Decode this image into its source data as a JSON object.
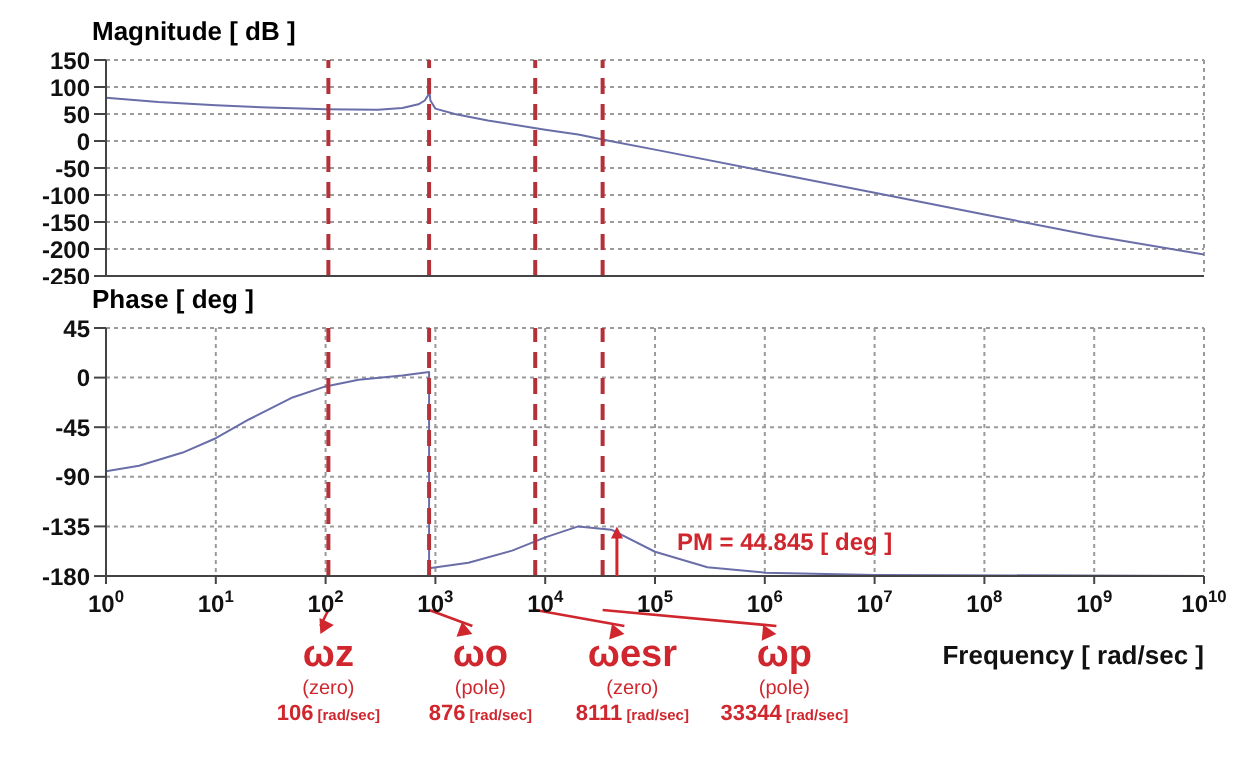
{
  "chart_data": [
    {
      "type": "line",
      "title": "Magnitude [ dB ]",
      "log": "x",
      "grid": true,
      "tick_labels": "y",
      "xlim": [
        1,
        10000000000
      ],
      "xticks": [
        {
          "value": 1,
          "label": null
        },
        {
          "value": 10,
          "label": null
        },
        {
          "value": 100,
          "label": null
        },
        {
          "value": 1000,
          "label": null
        },
        {
          "value": 10000,
          "label": null
        },
        {
          "value": 100000,
          "label": null
        },
        {
          "value": 1000000,
          "label": null
        },
        {
          "value": 10000000,
          "label": null
        },
        {
          "value": 100000000,
          "label": null
        },
        {
          "value": 1000000000,
          "label": null
        },
        {
          "value": 10000000000,
          "label": null
        }
      ],
      "ylim": [
        -250,
        150
      ],
      "yticks": [
        -250,
        -200,
        -150,
        -100,
        -50,
        0,
        50,
        100,
        150
      ],
      "series": [
        {
          "color": "#6a6ea8",
          "x": [
            1,
            3,
            10,
            30,
            100,
            300,
            500,
            700,
            800,
            860,
            876,
            900,
            1000,
            1500,
            3000,
            10000,
            20000,
            38900,
            100000,
            1000000,
            10000000,
            100000000,
            1000000000,
            10000000000
          ],
          "values": [
            80,
            72,
            66,
            62,
            59,
            58,
            61,
            68,
            75,
            85,
            100,
            75,
            60,
            50,
            38,
            21,
            12,
            0,
            -16,
            -56,
            -96,
            -136,
            -176,
            -210
          ]
        }
      ],
      "ref_lines": [
        {
          "axis": "x",
          "value": 106,
          "color": "#b5313a",
          "line_style": "dashed"
        },
        {
          "axis": "x",
          "value": 876,
          "color": "#b5313a",
          "line_style": "dashed"
        },
        {
          "axis": "x",
          "value": 8111,
          "color": "#b5313a",
          "line_style": "dashed"
        },
        {
          "axis": "x",
          "value": 33344,
          "color": "#b5313a",
          "line_style": "dashed"
        }
      ]
    },
    {
      "type": "line",
      "title": "Phase [ deg ]",
      "xlabel": "Frequency [ rad/sec ]",
      "log": "x",
      "grid": true,
      "xlim": [
        1,
        10000000000
      ],
      "xticks": [
        {
          "value": 1,
          "label": "10$^{0}$"
        },
        {
          "value": 10,
          "label": "10$^{1}$"
        },
        {
          "value": 100,
          "label": "10$^{2}$"
        },
        {
          "value": 1000,
          "label": "10$^{3}$"
        },
        {
          "value": 10000,
          "label": "10$^{4}$"
        },
        {
          "value": 100000,
          "label": "10$^{5}$"
        },
        {
          "value": 1000000,
          "label": "10$^{6}$"
        },
        {
          "value": 10000000,
          "label": "10$^{7}$"
        },
        {
          "value": 100000000,
          "label": "10$^{8}$"
        },
        {
          "value": 1000000000,
          "label": "10$^{9}$"
        },
        {
          "value": 10000000000,
          "label": "10$^{10}$"
        }
      ],
      "ylim": [
        -180,
        45
      ],
      "yticks": [
        -180,
        -135,
        -90,
        -45,
        0,
        45
      ],
      "series": [
        {
          "color": "#6a6ea8",
          "x": [
            1,
            2,
            5,
            10,
            20,
            50,
            100,
            200,
            500,
            876,
            876,
            2000,
            5000,
            10000,
            20000,
            40000,
            100000,
            300000,
            1000000,
            10000000,
            10000000000
          ],
          "values": [
            -85,
            -80,
            -68,
            -55,
            -38,
            -18,
            -8,
            -2,
            2,
            5,
            -173,
            -168,
            -157,
            -145,
            -135,
            -138,
            -158,
            -172,
            -177,
            -179,
            -180
          ]
        }
      ],
      "ref_lines": [
        {
          "axis": "x",
          "value": 106,
          "label": "ωz (zero) 106 [rad/sec]",
          "color": "#b5313a",
          "line_style": "dashed"
        },
        {
          "axis": "x",
          "value": 876,
          "label": "ωo (pole) 876 [rad/sec]",
          "color": "#b5313a",
          "line_style": "dashed"
        },
        {
          "axis": "x",
          "value": 8111,
          "label": "ωesr (zero) 8111 [rad/sec]",
          "color": "#b5313a",
          "line_style": "dashed"
        },
        {
          "axis": "x",
          "value": 33344,
          "label": "ωp (pole) 33344 [rad/sec]",
          "color": "#b5313a",
          "line_style": "dashed"
        }
      ],
      "annotations": [
        {
          "text": "PM = 44.845 [ deg ]",
          "x": 45000,
          "y": -135
        }
      ]
    }
  ]
}
